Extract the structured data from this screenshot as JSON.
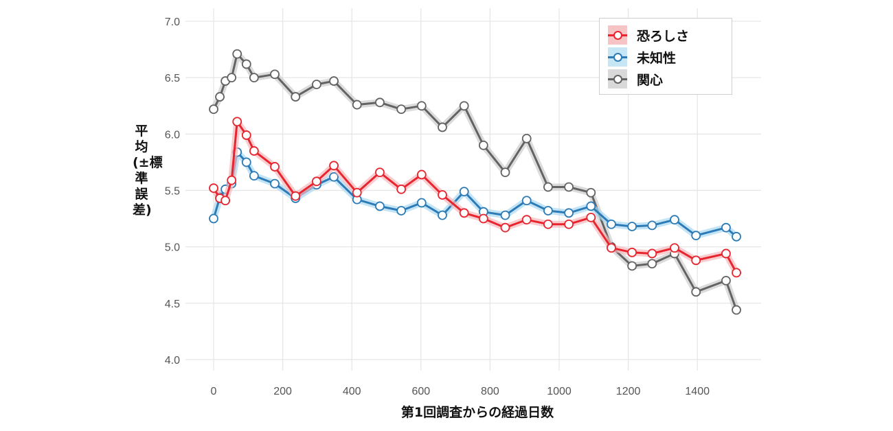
{
  "chart_data": {
    "type": "line",
    "title": "",
    "xlabel": "第1回調査からの経過日数",
    "ylabel": "平均(±標準誤差)",
    "xlim": [
      -60,
      1580
    ],
    "ylim": [
      3.95,
      7.05
    ],
    "x_ticks": [
      0,
      200,
      400,
      600,
      800,
      1000,
      1200,
      1400
    ],
    "y_ticks": [
      4.0,
      4.5,
      5.0,
      5.5,
      6.0,
      6.5,
      7.0
    ],
    "x_tick_labels": [
      "0",
      "200",
      "400",
      "600",
      "800",
      "1000",
      "1200",
      "1400"
    ],
    "y_tick_labels": [
      "4.0",
      "4.5",
      "5.0",
      "5.5",
      "6.0",
      "6.5",
      "7.0"
    ],
    "grid": true,
    "legend_position": "top-right",
    "x": [
      0,
      18,
      34,
      52,
      68,
      95,
      117,
      177,
      237,
      298,
      348,
      415,
      481,
      543,
      602,
      662,
      725,
      781,
      844,
      906,
      968,
      1028,
      1092,
      1151,
      1211,
      1269,
      1334,
      1396,
      1483,
      1513
    ],
    "series": [
      {
        "name": "恐ろしさ",
        "color": "#e8252e",
        "band_color": "#f7b8bb",
        "values": [
          5.52,
          5.43,
          5.41,
          5.59,
          6.11,
          5.99,
          5.85,
          5.71,
          5.45,
          5.58,
          5.72,
          5.48,
          5.66,
          5.51,
          5.64,
          5.46,
          5.3,
          5.25,
          5.17,
          5.24,
          5.2,
          5.2,
          5.26,
          4.99,
          4.95,
          4.94,
          4.99,
          4.88,
          4.94,
          4.77
        ]
      },
      {
        "name": "未知性",
        "color": "#2c7bb6",
        "band_color": "#a9d8f2",
        "values": [
          5.25,
          5.44,
          5.51,
          5.56,
          5.84,
          5.75,
          5.63,
          5.56,
          5.43,
          5.55,
          5.62,
          5.42,
          5.36,
          5.32,
          5.39,
          5.28,
          5.49,
          5.31,
          5.28,
          5.41,
          5.32,
          5.3,
          5.36,
          5.2,
          5.18,
          5.19,
          5.24,
          5.1,
          5.17,
          5.09
        ]
      },
      {
        "name": "関心",
        "color": "#636363",
        "band_color": "#cccccc",
        "values": [
          6.22,
          6.33,
          6.47,
          6.5,
          6.71,
          6.62,
          6.5,
          6.53,
          6.33,
          6.44,
          6.47,
          6.26,
          6.28,
          6.22,
          6.25,
          6.06,
          6.25,
          5.9,
          5.66,
          5.96,
          5.53,
          5.53,
          5.48,
          5.0,
          4.83,
          4.85,
          4.94,
          4.6,
          4.7,
          4.44
        ]
      }
    ]
  },
  "legend": {
    "items": [
      {
        "label": "恐ろしさ",
        "color": "#e8252e",
        "band": "#f7c4c6"
      },
      {
        "label": "未知性",
        "color": "#2c7bb6",
        "band": "#c6e6f6"
      },
      {
        "label": "関心",
        "color": "#636363",
        "band": "#d9d9d9"
      }
    ]
  },
  "axes": {
    "xlabel": "第1回調査からの経過日数",
    "ylabel": "平均(±標準誤差)"
  }
}
